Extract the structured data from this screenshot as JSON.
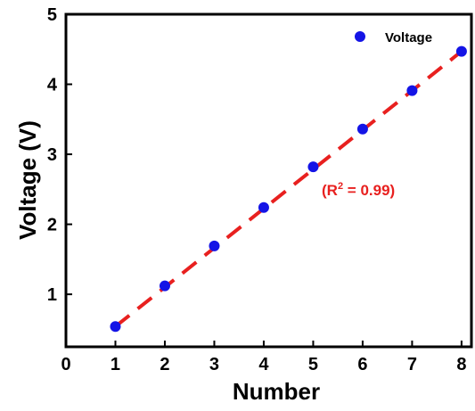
{
  "chart_data": {
    "type": "scatter",
    "title": "",
    "xlabel": "Number",
    "ylabel": "Voltage (V)",
    "xlim": [
      0,
      8.2
    ],
    "ylim": [
      0.25,
      5
    ],
    "x_ticks": [
      0,
      1,
      2,
      3,
      4,
      5,
      6,
      7,
      8
    ],
    "y_ticks": [
      1,
      2,
      3,
      4,
      5
    ],
    "grid": false,
    "legend": {
      "placement": "top-right",
      "entries": [
        "Voltage"
      ]
    },
    "series": [
      {
        "name": "Voltage",
        "color": "#1414e6",
        "marker": "circle",
        "x": [
          1,
          2,
          3,
          4,
          5,
          6,
          7,
          8
        ],
        "y": [
          0.54,
          1.12,
          1.69,
          2.24,
          2.82,
          3.36,
          3.91,
          4.47
        ]
      }
    ],
    "fit_line": {
      "style": "dashed",
      "color": "#e8201f",
      "from": [
        1,
        0.54
      ],
      "to": [
        8,
        4.47
      ]
    },
    "annotation": {
      "prefix": "(R",
      "sup": "2",
      "suffix": " = 0.99)",
      "color": "#e8201f"
    }
  }
}
